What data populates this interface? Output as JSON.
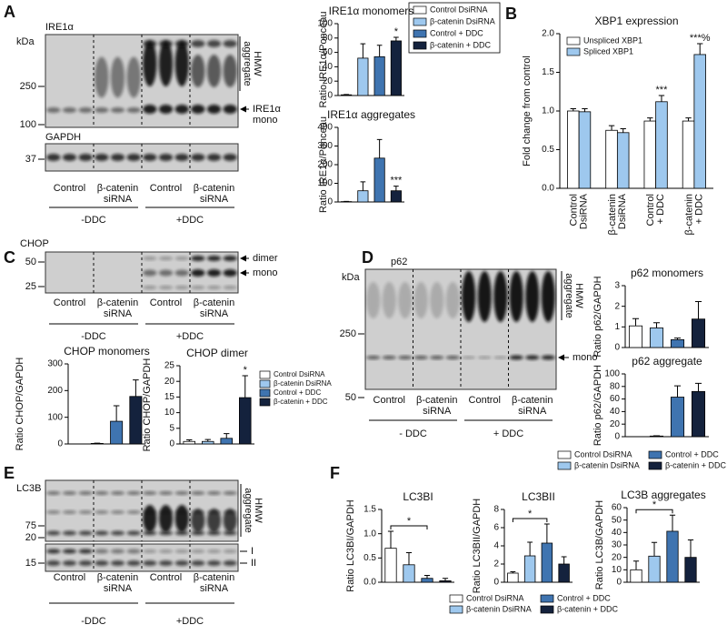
{
  "panels": [
    "A",
    "B",
    "C",
    "D",
    "E",
    "F"
  ],
  "blots": [
    {
      "kda": "kDa",
      "target": "IRE1α",
      "markers": [
        "250",
        "100"
      ],
      "bracket_label": [
        "HMW",
        "aggregate"
      ],
      "arrow_labels": [
        [
          "IRE1α",
          "mono"
        ]
      ],
      "loading": {
        "target": "GAPDH",
        "markers": [
          "37"
        ]
      },
      "lanes": [
        [
          "Control"
        ],
        [
          "β-catenin",
          "siRNA"
        ],
        [
          "Control"
        ],
        [
          "β-catenin",
          "siRNA"
        ]
      ],
      "conditions": [
        "-DDC",
        "+DDC"
      ]
    },
    {
      "target": "CHOP",
      "markers": [
        "50",
        "25"
      ],
      "arrow_labels": [
        [
          "dimer"
        ],
        [
          "mono"
        ]
      ],
      "lanes": [
        [
          "Control"
        ],
        [
          "β-catenin",
          "siRNA"
        ],
        [
          "Control"
        ],
        [
          "β-catenin",
          "siRNA"
        ]
      ],
      "conditions": [
        "-DDC",
        "+DDC"
      ]
    },
    {
      "kda": "kDa",
      "target": "p62",
      "markers": [
        "250",
        "50"
      ],
      "bracket_label": [
        "HMW",
        "aggregate"
      ],
      "arrow_labels": [
        [
          "mono"
        ]
      ],
      "lanes": [
        [
          "Control"
        ],
        [
          "β-catenin",
          "siRNA"
        ],
        [
          "Control"
        ],
        [
          "β-catenin",
          "siRNA"
        ]
      ],
      "conditions": [
        "- DDC",
        "+ DDC"
      ]
    },
    {
      "target": "LC3B",
      "markers": [
        "75",
        "20",
        "15"
      ],
      "bracket_label": [
        "HMW",
        "aggregate"
      ],
      "band_labels": [
        "I",
        "II"
      ],
      "lanes": [
        [
          "Control"
        ],
        [
          "β-catenin",
          "siRNA"
        ],
        [
          "Control"
        ],
        [
          "β-catenin",
          "siRNA"
        ]
      ],
      "conditions": [
        "-DDC",
        "+DDC"
      ]
    }
  ],
  "chart_data": [
    {
      "type": "bar",
      "title": "IRE1α monomers",
      "ylabel": "Ratio IRE1α/Ponceau",
      "ylim": [
        0,
        100
      ],
      "yticks": [
        0,
        20,
        40,
        60,
        80,
        100
      ],
      "values": [
        1,
        52,
        54,
        76
      ],
      "errors": [
        0.5,
        20,
        16,
        5
      ],
      "colors": [
        "#ffffff",
        "#9ec8ee",
        "#3f74b0",
        "#14223d"
      ],
      "significance": [
        null,
        null,
        null,
        "*"
      ],
      "legend": [
        "Control DsiRNA",
        "β-catenin DsiRNA",
        "Control + DDC",
        "β-catenin + DDC"
      ]
    },
    {
      "type": "bar",
      "title": "IRE1α aggregates",
      "ylabel": "Ratio IRE1α/Ponceau",
      "ylim": [
        0,
        400
      ],
      "yticks": [
        0,
        100,
        200,
        300,
        400
      ],
      "values": [
        2,
        60,
        235,
        60
      ],
      "errors": [
        1,
        48,
        100,
        25
      ],
      "colors": [
        "#ffffff",
        "#9ec8ee",
        "#3f74b0",
        "#14223d"
      ],
      "significance": [
        null,
        null,
        null,
        "***"
      ]
    },
    {
      "type": "grouped_bar",
      "title": "XBP1 expression",
      "ylabel": "Fold change from control",
      "ylim": [
        0,
        2
      ],
      "yticks": [
        {
          "value": 0,
          "label": "0.0"
        },
        0.5,
        {
          "value": 1,
          "label": "1.0"
        },
        1.5,
        {
          "value": 2,
          "label": "2.0"
        }
      ],
      "categories": [
        [
          "Control",
          "DsiRNA"
        ],
        [
          "β-catenin",
          "DsiRNA"
        ],
        [
          "Control",
          "+ DDC"
        ],
        [
          "β-catenin",
          "+ DDC"
        ]
      ],
      "series": [
        {
          "name": "Unspliced XBP1",
          "color": "#ffffff",
          "values": [
            1.0,
            0.75,
            0.87,
            0.87
          ],
          "errors": [
            0.03,
            0.06,
            0.04,
            0.04
          ]
        },
        {
          "name": "Spliced XBP1",
          "color": "#9ec8ee",
          "values": [
            0.99,
            0.72,
            1.12,
            1.73
          ],
          "errors": [
            0.04,
            0.05,
            0.08,
            0.14
          ],
          "significance": [
            null,
            null,
            "***",
            "***%"
          ]
        }
      ]
    },
    {
      "type": "bar",
      "title": "CHOP monomers",
      "ylabel": "Ratio CHOP/GAPDH",
      "ylim": [
        0,
        300
      ],
      "yticks": [
        0,
        100,
        200,
        300
      ],
      "values": [
        0,
        2,
        85,
        178
      ],
      "errors": [
        0,
        1,
        58,
        62
      ],
      "colors": [
        "#ffffff",
        "#9ec8ee",
        "#3f74b0",
        "#14223d"
      ]
    },
    {
      "type": "bar",
      "title": "CHOP dimer",
      "ylabel": "Ratio CHOP/GAPDH",
      "ylim": [
        0,
        25
      ],
      "yticks": [
        0,
        5,
        10,
        15,
        20,
        25
      ],
      "values": [
        0.8,
        0.8,
        1.8,
        14.8
      ],
      "errors": [
        0.5,
        0.6,
        1.5,
        7
      ],
      "colors": [
        "#ffffff",
        "#9ec8ee",
        "#3f74b0",
        "#14223d"
      ],
      "significance": [
        null,
        null,
        null,
        "*"
      ],
      "legend": [
        "Control DsiRNA",
        "β-catenin DsiRNA",
        "Control + DDC",
        "β-catenin + DDC"
      ]
    },
    {
      "type": "bar",
      "title": "p62 monomers",
      "ylabel": "Ratio p62/GAPDH",
      "ylim": [
        0,
        3
      ],
      "yticks": [
        0,
        1,
        2,
        3
      ],
      "values": [
        1.05,
        0.95,
        0.38,
        1.38
      ],
      "errors": [
        0.35,
        0.25,
        0.08,
        0.85
      ],
      "colors": [
        "#ffffff",
        "#9ec8ee",
        "#3f74b0",
        "#14223d"
      ]
    },
    {
      "type": "bar",
      "title": "p62 aggregate",
      "ylabel": "Ratio p62/GAPDH",
      "ylim": [
        0,
        100
      ],
      "yticks": [
        0,
        20,
        40,
        60,
        80,
        100
      ],
      "values": [
        0,
        1,
        63,
        72
      ],
      "errors": [
        0,
        0.5,
        18,
        13
      ],
      "colors": [
        "#ffffff",
        "#9ec8ee",
        "#3f74b0",
        "#14223d"
      ],
      "legend": [
        "Control DsiRNA",
        "β-catenin DsiRNA",
        "Control + DDC",
        "β-catenin + DDC"
      ]
    },
    {
      "type": "bar",
      "title": "LC3BI",
      "ylabel": "Ratio LC3BI/GAPDH",
      "ylim": [
        0,
        1.5
      ],
      "yticks": [
        {
          "value": 0,
          "label": "0.0"
        },
        0.5,
        {
          "value": 1,
          "label": "1.0"
        },
        1.5
      ],
      "values": [
        0.7,
        0.36,
        0.08,
        0.03
      ],
      "errors": [
        0.35,
        0.25,
        0.06,
        0.05
      ],
      "colors": [
        "#ffffff",
        "#9ec8ee",
        "#3f74b0",
        "#14223d"
      ],
      "bracket_label": "*"
    },
    {
      "type": "bar",
      "title": "LC3BII",
      "ylabel": "Ratio LC3BII/GAPDH",
      "ylim": [
        0,
        8
      ],
      "yticks": [
        0,
        2,
        4,
        6,
        8
      ],
      "values": [
        1.0,
        2.9,
        4.3,
        2.0
      ],
      "errors": [
        0.15,
        1.5,
        2.1,
        0.8
      ],
      "colors": [
        "#ffffff",
        "#9ec8ee",
        "#3f74b0",
        "#14223d"
      ],
      "bracket_label": "*"
    },
    {
      "type": "bar",
      "title": "LC3B aggregates",
      "ylabel": "Ratio LC3B/GAPDH",
      "ylim": [
        0,
        60
      ],
      "yticks": [
        0,
        10,
        20,
        30,
        40,
        50,
        60
      ],
      "values": [
        10,
        21,
        41,
        20
      ],
      "errors": [
        7,
        11,
        13,
        14
      ],
      "colors": [
        "#ffffff",
        "#9ec8ee",
        "#3f74b0",
        "#14223d"
      ],
      "bracket_label": "*",
      "legend": [
        "Control DsiRNA",
        "β-catenin DsiRNA",
        "Control + DDC",
        "β-catenin + DDC"
      ]
    }
  ]
}
